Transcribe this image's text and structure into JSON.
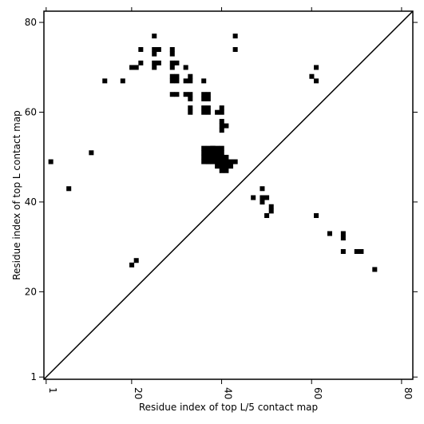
{
  "chart_data": {
    "type": "scatter",
    "marker": "square",
    "title": "",
    "xlabel": "Residue index of top L/5 contact map",
    "ylabel": "Residue index of top L contact map",
    "xlim": [
      0.5,
      82.5
    ],
    "ylim": [
      0.5,
      82.5
    ],
    "xticks": [
      1,
      20,
      40,
      60,
      80
    ],
    "yticks": [
      1,
      20,
      40,
      60,
      80
    ],
    "grid": false,
    "diagonal": {
      "from": [
        0.5,
        0.5
      ],
      "to": [
        82.5,
        82.5
      ]
    },
    "color": "#000000",
    "points_upper": [
      [
        25,
        77
      ],
      [
        43,
        77
      ],
      [
        22,
        74
      ],
      [
        25,
        74
      ],
      [
        26,
        74
      ],
      [
        29,
        74
      ],
      [
        43,
        74
      ],
      [
        25,
        73
      ],
      [
        29,
        73
      ],
      [
        22,
        71
      ],
      [
        25,
        71
      ],
      [
        26,
        71
      ],
      [
        29,
        71
      ],
      [
        30,
        71
      ],
      [
        20,
        70
      ],
      [
        21,
        70
      ],
      [
        25,
        70
      ],
      [
        29,
        70
      ],
      [
        32,
        70
      ],
      [
        29,
        68
      ],
      [
        30,
        68
      ],
      [
        33,
        68
      ],
      [
        14,
        67
      ],
      [
        18,
        67
      ],
      [
        29,
        67
      ],
      [
        30,
        67
      ],
      [
        32,
        67
      ],
      [
        33,
        67
      ],
      [
        36,
        67
      ],
      [
        29,
        64
      ],
      [
        30,
        64
      ],
      [
        32,
        64
      ],
      [
        33,
        64
      ],
      [
        36,
        64
      ],
      [
        37,
        64
      ],
      [
        36,
        63
      ],
      [
        37,
        63
      ],
      [
        33,
        63
      ],
      [
        33,
        61
      ],
      [
        36,
        61
      ],
      [
        37,
        61
      ],
      [
        40,
        61
      ],
      [
        33,
        60
      ],
      [
        36,
        60
      ],
      [
        37,
        60
      ],
      [
        39,
        60
      ],
      [
        40,
        60
      ],
      [
        40,
        58
      ],
      [
        40,
        57
      ],
      [
        41,
        57
      ],
      [
        40,
        56
      ],
      [
        11,
        51
      ],
      [
        2,
        49
      ],
      [
        6,
        43
      ],
      [
        20,
        26
      ],
      [
        21,
        27
      ],
      [
        61,
        70
      ],
      [
        60,
        68
      ],
      [
        61,
        67
      ]
    ],
    "block_fill": [
      [
        37,
        38,
        39,
        52
      ],
      [
        36,
        38,
        40,
        52
      ],
      [
        37,
        38,
        39,
        51
      ],
      [
        36,
        38,
        40,
        51
      ],
      [
        36,
        37,
        38,
        39,
        40,
        50
      ],
      [
        37,
        38,
        39,
        40,
        41,
        50
      ],
      [
        36,
        37,
        38,
        39,
        40,
        41,
        49
      ],
      [
        37,
        38,
        39,
        40,
        41,
        42,
        43,
        49
      ],
      [
        39,
        40,
        41,
        42,
        48
      ],
      [
        40,
        41,
        47
      ]
    ],
    "points_lower": [
      [
        47,
        41
      ],
      [
        49,
        43
      ],
      [
        49,
        41
      ],
      [
        50,
        41
      ],
      [
        49,
        40
      ],
      [
        51,
        39
      ],
      [
        51,
        38
      ],
      [
        50,
        37
      ],
      [
        61,
        37
      ],
      [
        64,
        33
      ],
      [
        67,
        33
      ],
      [
        67,
        32
      ],
      [
        67,
        29
      ],
      [
        70,
        29
      ],
      [
        71,
        29
      ],
      [
        74,
        25
      ]
    ]
  }
}
